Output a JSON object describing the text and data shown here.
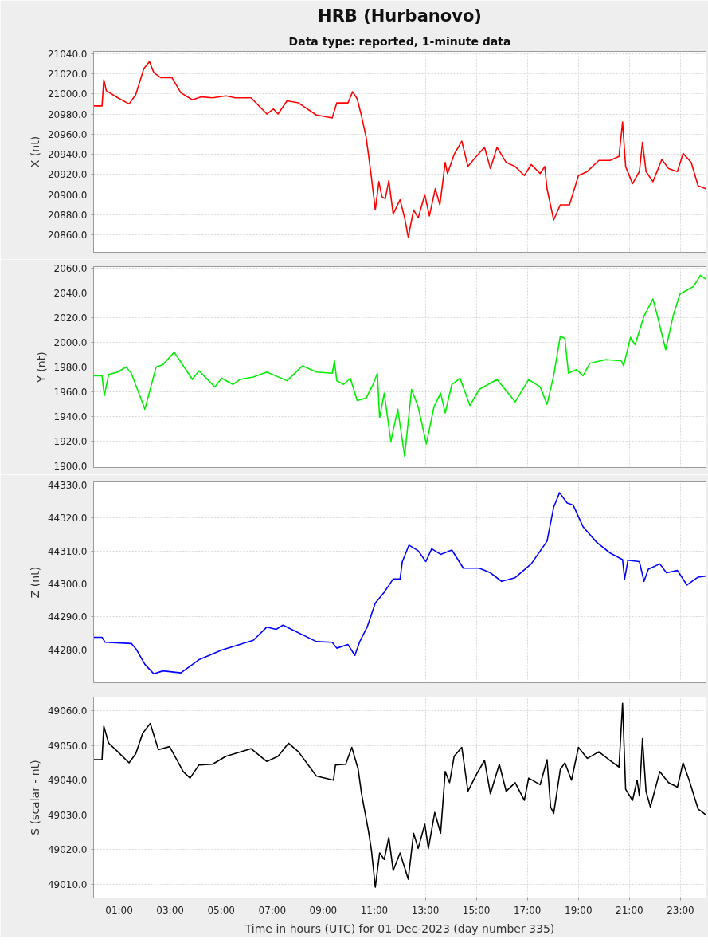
{
  "chart_data": [
    {
      "type": "line",
      "title": "HRB (Hurbanovo)",
      "subtitle": "Data type: reported, 1-minute data",
      "ylabel": "X (nt)",
      "xlim": [
        0,
        24
      ],
      "xticks": [
        {
          "value": 1,
          "label": null
        },
        {
          "value": 3,
          "label": null
        },
        {
          "value": 5,
          "label": null
        },
        {
          "value": 7,
          "label": null
        },
        {
          "value": 9,
          "label": null
        },
        {
          "value": 11,
          "label": null
        },
        {
          "value": 13,
          "label": null
        },
        {
          "value": 15,
          "label": null
        },
        {
          "value": 17,
          "label": null
        },
        {
          "value": 19,
          "label": null
        },
        {
          "value": 21,
          "label": null
        },
        {
          "value": 23,
          "label": null
        }
      ],
      "ylim": [
        20843,
        21042
      ],
      "yticks": [
        {
          "value": 20860,
          "label": "20860.0"
        },
        {
          "value": 20880,
          "label": "20880.0"
        },
        {
          "value": 20900,
          "label": "20900.0"
        },
        {
          "value": 20920,
          "label": "20920.0"
        },
        {
          "value": 20940,
          "label": "20940.0"
        },
        {
          "value": 20960,
          "label": "20960.0"
        },
        {
          "value": 20980,
          "label": "20980.0"
        },
        {
          "value": 21000,
          "label": "21000.0"
        },
        {
          "value": 21020,
          "label": "21020.0"
        },
        {
          "value": 21040,
          "label": "21040.0"
        }
      ],
      "grid": true,
      "tick_labels": "y",
      "x": [
        0,
        0.33,
        0.4,
        0.5,
        0.95,
        1.39,
        1.65,
        1.97,
        2.19,
        2.36,
        2.63,
        3.07,
        3.42,
        3.87,
        4.22,
        4.66,
        5.19,
        5.55,
        6.17,
        6.79,
        7.05,
        7.23,
        7.58,
        8.03,
        8.73,
        9.35,
        9.53,
        9.97,
        10.15,
        10.33,
        10.5,
        10.68,
        10.86,
        11.04,
        11.18,
        11.3,
        11.43,
        11.57,
        11.74,
        12.01,
        12.19,
        12.33,
        12.54,
        12.72,
        12.98,
        13.16,
        13.39,
        13.57,
        13.78,
        13.87,
        14.13,
        14.43,
        14.67,
        14.93,
        15.32,
        15.55,
        15.81,
        16.17,
        16.52,
        16.88,
        17.15,
        17.5,
        17.68,
        17.77,
        18.03,
        18.29,
        18.65,
        19,
        19.35,
        19.8,
        20.24,
        20.59,
        20.73,
        20.85,
        21.12,
        21.39,
        21.51,
        21.65,
        21.92,
        22.27,
        22.53,
        22.88,
        23.1,
        23.42,
        23.69,
        23.99
      ],
      "series": [
        {
          "color": "#ff0000",
          "values": [
            20988,
            20988,
            21014,
            21003,
            20996,
            20990,
            20999,
            21025,
            21032,
            21021,
            21016,
            21016,
            21001,
            20994,
            20997,
            20996,
            20998,
            20996,
            20996,
            20980,
            20985,
            20980,
            20993,
            20991,
            20979,
            20976,
            20991,
            20991,
            21002,
            20995,
            20978,
            20957,
            20923,
            20885,
            20913,
            20898,
            20896,
            20914,
            20881,
            20895,
            20877,
            20858,
            20885,
            20877,
            20900,
            20879,
            20906,
            20890,
            20932,
            20921,
            20940,
            20953,
            20928,
            20936,
            20947,
            20926,
            20947,
            20932,
            20928,
            20919,
            20930,
            20921,
            20928,
            20906,
            20875,
            20890,
            20890,
            20919,
            20923,
            20934,
            20934,
            20938,
            20972,
            20928,
            20911,
            20923,
            20952,
            20923,
            20913,
            20935,
            20926,
            20923,
            20941,
            20932,
            20909,
            20906
          ]
        }
      ]
    },
    {
      "type": "line",
      "ylabel": "Y (nt)",
      "xlim": [
        0,
        24
      ],
      "xticks": [
        {
          "value": 1,
          "label": null
        },
        {
          "value": 3,
          "label": null
        },
        {
          "value": 5,
          "label": null
        },
        {
          "value": 7,
          "label": null
        },
        {
          "value": 9,
          "label": null
        },
        {
          "value": 11,
          "label": null
        },
        {
          "value": 13,
          "label": null
        },
        {
          "value": 15,
          "label": null
        },
        {
          "value": 17,
          "label": null
        },
        {
          "value": 19,
          "label": null
        },
        {
          "value": 21,
          "label": null
        },
        {
          "value": 23,
          "label": null
        }
      ],
      "ylim": [
        1899,
        2061
      ],
      "yticks": [
        {
          "value": 1900,
          "label": "1900.0"
        },
        {
          "value": 1920,
          "label": "1920.0"
        },
        {
          "value": 1940,
          "label": "1940.0"
        },
        {
          "value": 1960,
          "label": "1960.0"
        },
        {
          "value": 1980,
          "label": "1980.0"
        },
        {
          "value": 2000,
          "label": "2000.0"
        },
        {
          "value": 2020,
          "label": "2020.0"
        },
        {
          "value": 2040,
          "label": "2040.0"
        },
        {
          "value": 2060,
          "label": "2060.0"
        }
      ],
      "grid": true,
      "tick_labels": "y",
      "x": [
        0,
        0.33,
        0.42,
        0.59,
        0.95,
        1.27,
        1.48,
        2.01,
        2.45,
        2.72,
        3.16,
        3.87,
        4.13,
        4.75,
        5.02,
        5.46,
        5.73,
        6.26,
        6.79,
        7.58,
        8.19,
        8.73,
        9.35,
        9.44,
        9.53,
        9.8,
        10.06,
        10.33,
        10.68,
        10.95,
        11.12,
        11.21,
        11.39,
        11.65,
        11.92,
        12.19,
        12.46,
        12.72,
        13.04,
        13.34,
        13.6,
        13.78,
        14.04,
        14.36,
        14.75,
        15.11,
        15.46,
        15.81,
        16.52,
        17.05,
        17.5,
        17.77,
        18.03,
        18.29,
        18.47,
        18.61,
        18.92,
        19.18,
        19.45,
        20.06,
        20.68,
        20.77,
        21.04,
        21.22,
        21.57,
        21.92,
        22.1,
        22.42,
        22.72,
        22.98,
        23.25,
        23.51,
        23.78,
        23.99
      ],
      "series": [
        {
          "color": "#00ee00",
          "values": [
            1973,
            1973,
            1957,
            1974,
            1976,
            1980,
            1975,
            1946,
            1980,
            1982,
            1992,
            1970,
            1977,
            1964,
            1971,
            1966,
            1970,
            1972,
            1976,
            1969,
            1981,
            1976,
            1975,
            1985,
            1969,
            1966,
            1971,
            1953,
            1955,
            1966,
            1975,
            1939,
            1959,
            1920,
            1946,
            1908,
            1962,
            1948,
            1918,
            1948,
            1959,
            1943,
            1966,
            1971,
            1949,
            1962,
            1966,
            1970,
            1952,
            1970,
            1964,
            1950,
            1973,
            2005,
            2003,
            1975,
            1978,
            1973,
            1983,
            1986,
            1985,
            1981,
            2004,
            1998,
            2021,
            2035,
            2021,
            1994,
            2022,
            2039,
            2042,
            2045,
            2054,
            2051
          ]
        }
      ]
    },
    {
      "type": "line",
      "ylabel": "Z (nt)",
      "xlim": [
        0,
        24
      ],
      "xticks": [
        {
          "value": 1,
          "label": null
        },
        {
          "value": 3,
          "label": null
        },
        {
          "value": 5,
          "label": null
        },
        {
          "value": 7,
          "label": null
        },
        {
          "value": 9,
          "label": null
        },
        {
          "value": 11,
          "label": null
        },
        {
          "value": 13,
          "label": null
        },
        {
          "value": 15,
          "label": null
        },
        {
          "value": 17,
          "label": null
        },
        {
          "value": 19,
          "label": null
        },
        {
          "value": 21,
          "label": null
        },
        {
          "value": 23,
          "label": null
        }
      ],
      "ylim": [
        44270,
        44331
      ],
      "yticks": [
        {
          "value": 44280,
          "label": "44280.0"
        },
        {
          "value": 44290,
          "label": "44290.0"
        },
        {
          "value": 44300,
          "label": "44300.0"
        },
        {
          "value": 44310,
          "label": "44310.0"
        },
        {
          "value": 44320,
          "label": "44320.0"
        },
        {
          "value": 44330,
          "label": "44330.0"
        }
      ],
      "grid": true,
      "tick_labels": "y",
      "x": [
        0,
        0.33,
        0.45,
        1.48,
        1.66,
        2.01,
        2.36,
        2.72,
        3.42,
        4.13,
        5.02,
        6.26,
        6.79,
        7.15,
        7.42,
        8.73,
        9.35,
        9.53,
        9.97,
        10.24,
        10.42,
        10.72,
        11.04,
        11.39,
        11.74,
        12.01,
        12.1,
        12.36,
        12.72,
        13.02,
        13.25,
        13.6,
        14.04,
        14.49,
        15.11,
        15.55,
        15.99,
        16.52,
        17.15,
        17.77,
        18.03,
        18.26,
        18.56,
        18.79,
        19.18,
        19.71,
        20.24,
        20.73,
        20.81,
        20.94,
        21.39,
        21.57,
        21.74,
        22.19,
        22.45,
        22.88,
        23.25,
        23.69,
        23.99
      ],
      "series": [
        {
          "color": "#0000ff",
          "values": [
            44283.8,
            44283.8,
            44282.3,
            44281.9,
            44280.3,
            44275.6,
            44272.7,
            44273.6,
            44273,
            44277,
            44279.9,
            44282.9,
            44286.9,
            44286.2,
            44287.5,
            44282.5,
            44282.3,
            44280.5,
            44281.6,
            44278.3,
            44282.3,
            44286.9,
            44294.2,
            44297.5,
            44301.5,
            44301.5,
            44306.8,
            44311.8,
            44310.1,
            44306.8,
            44310.7,
            44309,
            44310.3,
            44304.8,
            44304.8,
            44303.4,
            44300.8,
            44301.9,
            44306.1,
            44313,
            44323.3,
            44327.7,
            44324.6,
            44324,
            44317.4,
            44312.7,
            44309.4,
            44307.4,
            44301.5,
            44307.2,
            44306.8,
            44300.8,
            44304.5,
            44306.1,
            44303.4,
            44304.1,
            44299.7,
            44302.1,
            44302.4
          ]
        }
      ]
    },
    {
      "type": "line",
      "ylabel": "S (scalar - nt)",
      "xlabel": "Time in hours (UTC) for 01-Dec-2023 (day number 335)",
      "xlim": [
        0,
        24
      ],
      "xticks": [
        {
          "value": 1,
          "label": "01:00"
        },
        {
          "value": 3,
          "label": "03:00"
        },
        {
          "value": 5,
          "label": "05:00"
        },
        {
          "value": 7,
          "label": "07:00"
        },
        {
          "value": 9,
          "label": "09:00"
        },
        {
          "value": 11,
          "label": "11:00"
        },
        {
          "value": 13,
          "label": "13:00"
        },
        {
          "value": 15,
          "label": "15:00"
        },
        {
          "value": 17,
          "label": "17:00"
        },
        {
          "value": 19,
          "label": "19:00"
        },
        {
          "value": 21,
          "label": "21:00"
        },
        {
          "value": 23,
          "label": "23:00"
        }
      ],
      "ylim": [
        49006,
        49064
      ],
      "yticks": [
        {
          "value": 49010,
          "label": "49010.0"
        },
        {
          "value": 49020,
          "label": "49020.0"
        },
        {
          "value": 49030,
          "label": "49030.0"
        },
        {
          "value": 49040,
          "label": "49040.0"
        },
        {
          "value": 49050,
          "label": "49050.0"
        },
        {
          "value": 49060,
          "label": "49060.0"
        }
      ],
      "grid": true,
      "x": [
        0,
        0.33,
        0.4,
        0.59,
        0.95,
        1.39,
        1.65,
        1.92,
        2.22,
        2.54,
        2.98,
        3.51,
        3.78,
        4.13,
        4.66,
        5.19,
        6.17,
        6.79,
        7.23,
        7.64,
        8.03,
        8.73,
        9.4,
        9.48,
        9.88,
        10.12,
        10.37,
        10.5,
        10.77,
        10.89,
        11.04,
        11.21,
        11.39,
        11.57,
        11.74,
        12.01,
        12.33,
        12.54,
        12.72,
        12.98,
        13.12,
        13.37,
        13.6,
        13.78,
        13.95,
        14.13,
        14.43,
        14.67,
        15.02,
        15.32,
        15.55,
        15.9,
        16.17,
        16.52,
        16.88,
        17.05,
        17.5,
        17.77,
        17.91,
        18.03,
        18.29,
        18.47,
        18.73,
        19,
        19.35,
        19.8,
        20.24,
        20.59,
        20.73,
        20.85,
        21.12,
        21.3,
        21.39,
        21.51,
        21.65,
        21.82,
        22.19,
        22.53,
        22.88,
        23.1,
        23.34,
        23.69,
        23.99
      ],
      "series": [
        {
          "color": "#000000",
          "values": [
            49045.9,
            49045.9,
            49055.6,
            49050.7,
            49048.2,
            49045,
            49047.6,
            49053.5,
            49056.4,
            49048.8,
            49049.7,
            49042.5,
            49040.6,
            49044.4,
            49044.6,
            49046.9,
            49049.1,
            49045.4,
            49046.9,
            49050.7,
            49048.2,
            49041.2,
            49040,
            49044.4,
            49044.6,
            49049.5,
            49043.1,
            49036.1,
            49025.4,
            49019.7,
            49009.1,
            49019,
            49017.1,
            49023.5,
            49013.9,
            49019,
            49011.4,
            49024.7,
            49020.3,
            49027.3,
            49020.3,
            49030.7,
            49024.7,
            49042.5,
            49039.3,
            49046.9,
            49049.5,
            49036.8,
            49041.9,
            49045.7,
            49036.1,
            49044.6,
            49036.8,
            49039.3,
            49034.2,
            49040.6,
            49038.7,
            49045.9,
            49032.3,
            49030.4,
            49043.1,
            49045,
            49040,
            49049.5,
            49046.3,
            49048.2,
            49045.7,
            49043.8,
            49062.2,
            49037.4,
            49034.2,
            49040,
            49035.5,
            49052,
            49036.8,
            49032.3,
            49042.5,
            49039.3,
            49038,
            49045,
            49040,
            49031.7,
            49030
          ]
        }
      ]
    }
  ]
}
